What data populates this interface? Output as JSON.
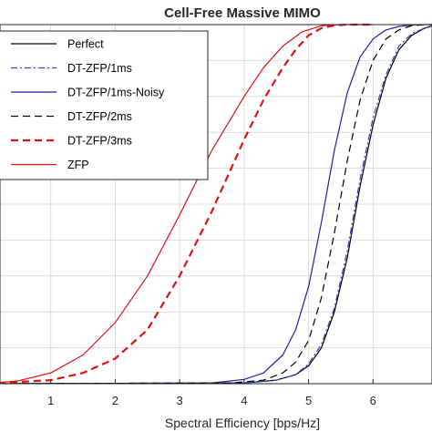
{
  "chart_data": {
    "type": "line",
    "title": "Cell-Free Massive MIMO",
    "xlabel": "Spectral Efficiency [bps/Hz]",
    "ylabel": "",
    "xlim": [
      0,
      7
    ],
    "ylim": [
      0,
      1
    ],
    "xticks": [
      "1",
      "2",
      "3",
      "4",
      "5",
      "6"
    ],
    "grid": true,
    "legend_position": "top-left",
    "series": [
      {
        "name": "Perfect",
        "color": "#000000",
        "dash": "solid",
        "width": 1.2,
        "x": [
          0,
          4.0,
          4.5,
          4.8,
          5.0,
          5.2,
          5.4,
          5.6,
          5.8,
          6.0,
          6.2,
          6.4,
          6.6,
          6.8,
          6.95,
          7.0
        ],
        "y": [
          0,
          0.002,
          0.01,
          0.025,
          0.05,
          0.1,
          0.2,
          0.35,
          0.55,
          0.72,
          0.85,
          0.93,
          0.97,
          0.99,
          0.998,
          1.0
        ]
      },
      {
        "name": "DT-ZFP/1ms",
        "color": "#2b3fd0",
        "dash": "dashdot",
        "width": 1.2,
        "x": [
          0,
          4.0,
          4.5,
          4.8,
          5.0,
          5.2,
          5.4,
          5.6,
          5.8,
          6.0,
          6.2,
          6.4,
          6.6,
          6.8,
          6.95,
          7.0
        ],
        "y": [
          0,
          0.002,
          0.01,
          0.025,
          0.055,
          0.11,
          0.21,
          0.37,
          0.57,
          0.74,
          0.86,
          0.94,
          0.975,
          0.99,
          0.998,
          1.0
        ]
      },
      {
        "name": "DT-ZFP/1ms-Noisy",
        "color": "#1f1fa8",
        "dash": "solid",
        "width": 1.2,
        "x": [
          0,
          3.5,
          4.0,
          4.3,
          4.6,
          4.8,
          5.0,
          5.2,
          5.4,
          5.6,
          5.8,
          6.0,
          6.2,
          6.4,
          6.6,
          6.8,
          7.0
        ],
        "y": [
          0,
          0.002,
          0.012,
          0.03,
          0.08,
          0.15,
          0.27,
          0.45,
          0.65,
          0.81,
          0.91,
          0.96,
          0.985,
          0.995,
          0.999,
          1.0,
          1.0
        ]
      },
      {
        "name": "DT-ZFP/2ms",
        "color": "#000000",
        "dash": "dashed",
        "width": 1.2,
        "x": [
          0,
          3.8,
          4.3,
          4.6,
          4.8,
          5.0,
          5.2,
          5.4,
          5.6,
          5.8,
          6.0,
          6.2,
          6.4,
          6.6,
          6.8,
          7.0
        ],
        "y": [
          0,
          0.002,
          0.01,
          0.03,
          0.06,
          0.12,
          0.24,
          0.42,
          0.62,
          0.79,
          0.9,
          0.96,
          0.985,
          0.997,
          1.0,
          1.0
        ]
      },
      {
        "name": "DT-ZFP/3ms",
        "color": "#dd1111",
        "dash": "dashed",
        "width": 2.2,
        "x": [
          0,
          1.0,
          1.5,
          2.0,
          2.5,
          3.0,
          3.5,
          4.0,
          4.3,
          4.6,
          4.8,
          5.0,
          5.2,
          5.4,
          5.6,
          5.8,
          6.0
        ],
        "y": [
          0,
          0.01,
          0.03,
          0.07,
          0.15,
          0.3,
          0.48,
          0.68,
          0.79,
          0.88,
          0.93,
          0.97,
          0.99,
          0.998,
          1.0,
          1.0,
          1.0
        ]
      },
      {
        "name": "ZFP",
        "color": "#dd1111",
        "dash": "solid",
        "width": 1.2,
        "x": [
          0,
          0.5,
          1.0,
          1.5,
          2.0,
          2.5,
          3.0,
          3.5,
          4.0,
          4.3,
          4.6,
          4.9,
          5.2,
          5.5,
          6.0
        ],
        "y": [
          0,
          0.008,
          0.03,
          0.08,
          0.17,
          0.3,
          0.47,
          0.65,
          0.8,
          0.88,
          0.94,
          0.98,
          0.997,
          1.0,
          1.0
        ]
      }
    ]
  }
}
